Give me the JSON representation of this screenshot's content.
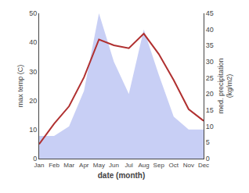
{
  "chart_data": {
    "type": "line",
    "xlabel": "date (month)",
    "ylabel": "max temp (C)",
    "y2label": "med. precipitation\n(kg/m2)",
    "categories": [
      "Jan",
      "Feb",
      "Mar",
      "Apr",
      "May",
      "Jun",
      "Jul",
      "Aug",
      "Sep",
      "Oct",
      "Nov",
      "Dec"
    ],
    "series": [
      {
        "type": "area",
        "axis": "y2",
        "color": "#c8cff5",
        "values": [
          7,
          7,
          10,
          21,
          45,
          30,
          20,
          40,
          26,
          13,
          9,
          9
        ]
      },
      {
        "type": "line",
        "color": "#b03030",
        "values": [
          5,
          12,
          18,
          28,
          41,
          39,
          38,
          43,
          36,
          27,
          17,
          13
        ]
      }
    ],
    "ylim": [
      0,
      50
    ],
    "yticks": [
      0,
      10,
      20,
      30,
      40,
      50
    ],
    "y2lim": [
      0,
      45
    ],
    "y2ticks": [
      0,
      5,
      10,
      15,
      20,
      25,
      30,
      35,
      40,
      45
    ],
    "grid": false
  }
}
